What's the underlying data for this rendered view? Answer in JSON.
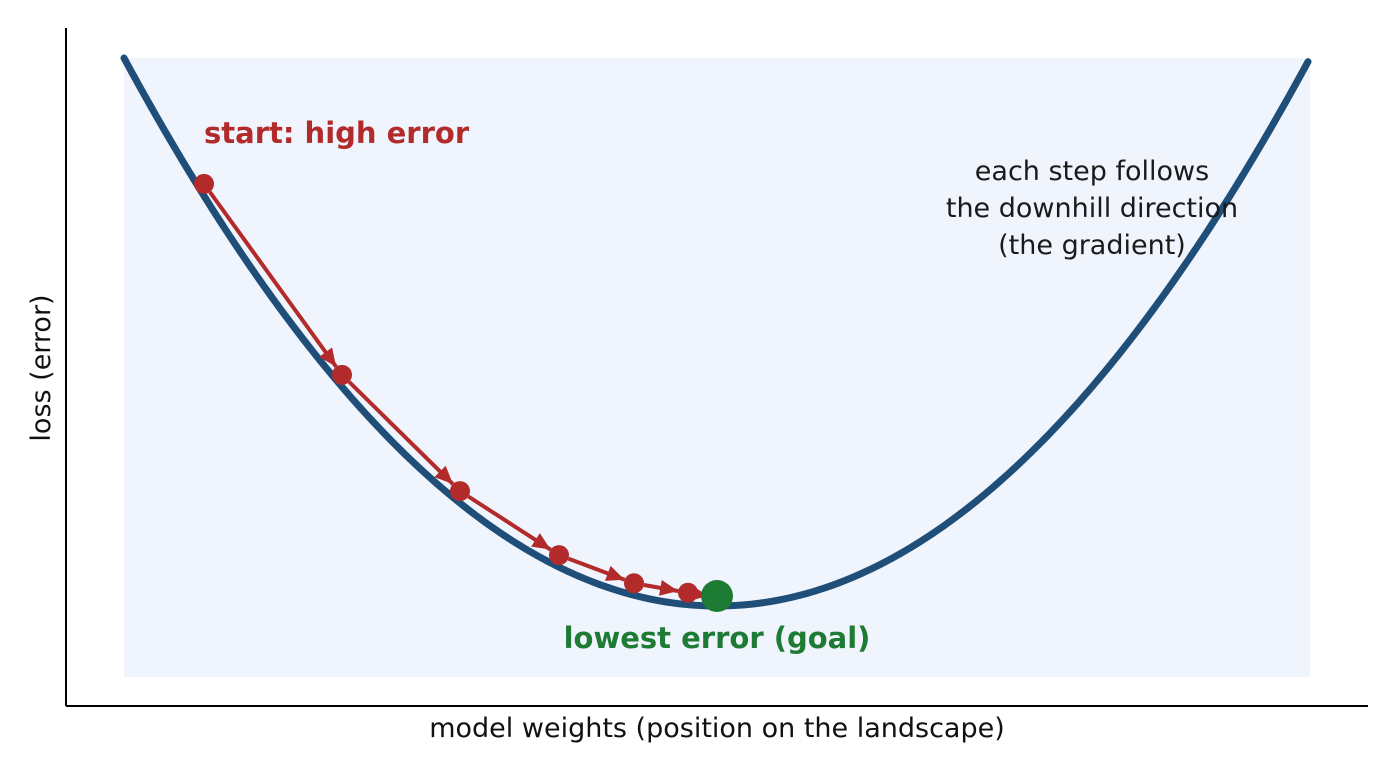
{
  "diagram": {
    "xlabel": "model weights (position on the landscape)",
    "ylabel": "loss (error)",
    "start_label": "start: high error",
    "goal_label": "lowest error (goal)",
    "annotation_lines": [
      "each step follows",
      "the downhill direction",
      "(the gradient)"
    ]
  },
  "chart_data": {
    "type": "line",
    "curve": "convex bowl (parabola)",
    "steps_count": 6,
    "grid": false,
    "ticks": false
  },
  "colors": {
    "curve": "#1f4e79",
    "fill": "#f0f4fc",
    "steps": "#b22a2a",
    "goal": "#1e7b34",
    "axis": "#000000",
    "text": "#1a1a1a"
  }
}
